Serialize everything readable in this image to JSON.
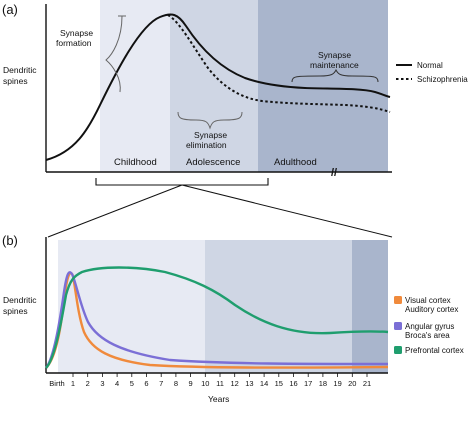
{
  "panel_a": {
    "label": "(a)",
    "ylabel_line1": "Dendritic",
    "ylabel_line2": "spines",
    "stages": [
      "Childhood",
      "Adolescence",
      "Adulthood"
    ],
    "annotations": {
      "formation_1": "Synapse",
      "formation_2": "formation",
      "elimination_1": "Synapse",
      "elimination_2": "elimination",
      "maintenance_1": "Synapse",
      "maintenance_2": "maintenance"
    },
    "legend": {
      "normal": "Normal",
      "schizophrenia": "Schizophrenia"
    },
    "axis_break": "//"
  },
  "panel_b": {
    "label": "(b)",
    "ylabel_line1": "Dendritic",
    "ylabel_line2": "spines",
    "xlabel": "Years",
    "ticks": [
      "Birth",
      "1",
      "2",
      "3",
      "4",
      "5",
      "6",
      "7",
      "8",
      "9",
      "10",
      "11",
      "12",
      "13",
      "14",
      "15",
      "16",
      "17",
      "18",
      "19",
      "20",
      "21"
    ],
    "legend": [
      {
        "line1": "Visual cortex",
        "line2": "Auditory cortex",
        "color": "#f08a3c"
      },
      {
        "line1": "Angular gyrus",
        "line2": "Broca's area",
        "color": "#7b6fd6"
      },
      {
        "line1": "Prefrontal cortex",
        "line2": "",
        "color": "#1f9e6e"
      }
    ]
  },
  "colors": {
    "region_light": "#e7eaf3",
    "region_mid": "#cfd6e4",
    "region_dark": "#a9b5cc",
    "orange": "#f08a3c",
    "purple": "#7b6fd6",
    "green": "#1f9e6e"
  }
}
